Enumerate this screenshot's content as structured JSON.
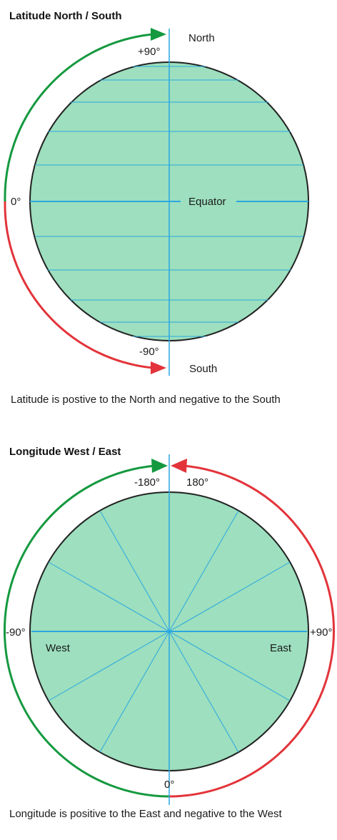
{
  "colors": {
    "globe_fill": "#9ddfbe",
    "globe_outline": "#222222",
    "grid_line": "#2aa7e0",
    "positive_arrow": "#14993f",
    "negative_arrow": "#e2343a"
  },
  "latitude": {
    "title": "Latitude North / South",
    "north_label": "North",
    "south_label": "South",
    "plus90_label": "+90°",
    "minus90_label": "-90°",
    "zero_label": "0°",
    "equator_label": "Equator",
    "caption": "Latitude is postive to the North and negative to the South"
  },
  "longitude": {
    "title": "Longitude West / East",
    "minus180_label": "-180°",
    "plus180_label": "180°",
    "minus90_label": "-90°",
    "plus90_label": "+90°",
    "zero_label": "0°",
    "west_label": "West",
    "east_label": "East",
    "caption": "Longitude is positive to the East and negative to the West"
  }
}
